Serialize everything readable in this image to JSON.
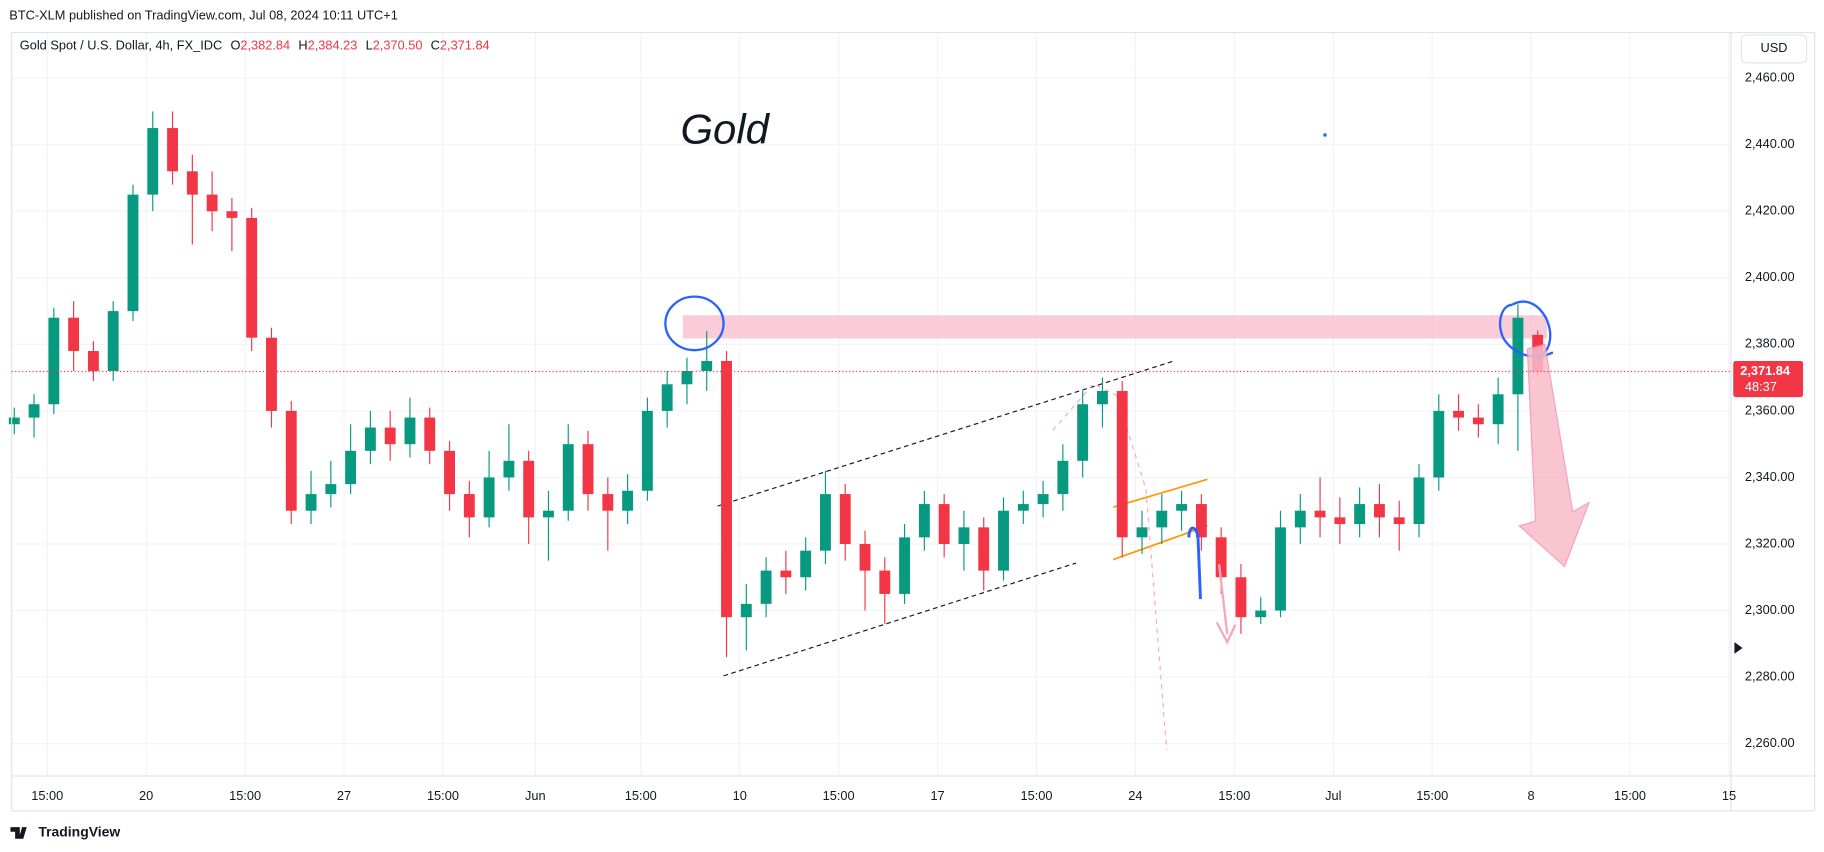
{
  "chart_data": {
    "type": "candlestick",
    "publisher": "BTC-XLM published on TradingView.com, Jul 08, 2024 10:11 UTC+1",
    "title": "Gold Spot / U.S. Dollar, 4h, FX_IDC",
    "legend_fields": [
      {
        "label": "O",
        "value": "2,382.84"
      },
      {
        "label": "H",
        "value": "2,384.23"
      },
      {
        "label": "L",
        "value": "2,370.50"
      },
      {
        "label": "C",
        "value": "2,371.84"
      }
    ],
    "annotation": "Gold",
    "currency": "USD",
    "countdown": "48:37",
    "brand": "TradingView",
    "up_color": "#089981",
    "down_color": "#f23645",
    "grid": true,
    "x": [
      0,
      3,
      6,
      9,
      12,
      15,
      18,
      21,
      24,
      27,
      30,
      33,
      36,
      39,
      42,
      45,
      48,
      51,
      54,
      57,
      60,
      63,
      66,
      69,
      72,
      75,
      78,
      81,
      84,
      87,
      90,
      93,
      96,
      99,
      102,
      105,
      108,
      111,
      114,
      117,
      120,
      123,
      126,
      129,
      132,
      135,
      138,
      141,
      144,
      147,
      150,
      153,
      156,
      159,
      162,
      165,
      168,
      171,
      174,
      177,
      180,
      183,
      186,
      189,
      192,
      195,
      198,
      201,
      204,
      207,
      210,
      213,
      216,
      219,
      222,
      225,
      228,
      231
    ],
    "open": [
      2356,
      2358,
      2362,
      2388,
      2378,
      2372,
      2390,
      2425,
      2445,
      2432,
      2425,
      2420,
      2418,
      2382,
      2360,
      2330,
      2335,
      2338,
      2348,
      2355,
      2350,
      2358,
      2348,
      2335,
      2328,
      2340,
      2345,
      2328,
      2330,
      2350,
      2335,
      2330,
      2336,
      2360,
      2368,
      2372,
      2375,
      2298,
      2302,
      2312,
      2310,
      2318,
      2335,
      2320,
      2312,
      2305,
      2322,
      2332,
      2320,
      2325,
      2312,
      2330,
      2332,
      2335,
      2345,
      2362,
      2366,
      2322,
      2325,
      2330,
      2332,
      2322,
      2310,
      2298,
      2300,
      2325,
      2330,
      2328,
      2326,
      2332,
      2328,
      2326,
      2340,
      2360,
      2358,
      2356,
      2365,
      2382.84
    ],
    "high": [
      2361,
      2365,
      2391,
      2393,
      2381,
      2393,
      2428,
      2450,
      2450,
      2437,
      2432,
      2424,
      2421,
      2385,
      2363,
      2342,
      2345,
      2356,
      2360,
      2360,
      2364,
      2361,
      2351,
      2339,
      2348,
      2356,
      2348,
      2336,
      2356,
      2354,
      2340,
      2341,
      2364,
      2372,
      2376,
      2384,
      2378,
      2308,
      2316,
      2318,
      2322,
      2342,
      2338,
      2324,
      2316,
      2326,
      2336,
      2335,
      2330,
      2328,
      2334,
      2336,
      2339,
      2350,
      2366,
      2370,
      2369,
      2330,
      2335,
      2336,
      2335,
      2325,
      2314,
      2304,
      2330,
      2335,
      2340,
      2334,
      2337,
      2338,
      2333,
      2344,
      2365,
      2365,
      2362,
      2370,
      2392,
      2384.23
    ],
    "low": [
      2353,
      2352,
      2359,
      2372,
      2369,
      2369,
      2387,
      2420,
      2428,
      2410,
      2414,
      2408,
      2378,
      2355,
      2326,
      2326,
      2331,
      2335,
      2344,
      2345,
      2346,
      2344,
      2330,
      2322,
      2325,
      2336,
      2320,
      2315,
      2327,
      2330,
      2318,
      2326,
      2333,
      2355,
      2362,
      2366,
      2286,
      2288,
      2298,
      2305,
      2306,
      2314,
      2315,
      2300,
      2296,
      2302,
      2318,
      2316,
      2312,
      2306,
      2309,
      2326,
      2328,
      2330,
      2340,
      2355,
      2316,
      2317,
      2320,
      2324,
      2318,
      2305,
      2293,
      2296,
      2298,
      2320,
      2322,
      2320,
      2322,
      2322,
      2318,
      2322,
      2336,
      2354,
      2352,
      2350,
      2348,
      2370.5
    ],
    "close": [
      2358,
      2362,
      2388,
      2378,
      2372,
      2390,
      2425,
      2445,
      2432,
      2425,
      2420,
      2418,
      2382,
      2360,
      2330,
      2335,
      2338,
      2348,
      2355,
      2350,
      2358,
      2348,
      2335,
      2328,
      2340,
      2345,
      2328,
      2330,
      2350,
      2335,
      2330,
      2336,
      2360,
      2368,
      2372,
      2375,
      2298,
      2302,
      2312,
      2310,
      2318,
      2335,
      2320,
      2312,
      2305,
      2322,
      2332,
      2320,
      2325,
      2312,
      2330,
      2332,
      2335,
      2345,
      2362,
      2366,
      2322,
      2325,
      2330,
      2332,
      2322,
      2310,
      2298,
      2300,
      2325,
      2330,
      2328,
      2326,
      2332,
      2328,
      2326,
      2340,
      2360,
      2358,
      2356,
      2365,
      2388,
      2371.84
    ],
    "xlim": [
      -0.4,
      260.3
    ],
    "xticks": [
      {
        "value": 5,
        "label": "15:00"
      },
      {
        "value": 20,
        "label": "20"
      },
      {
        "value": 35,
        "label": "15:00"
      },
      {
        "value": 50,
        "label": "27"
      },
      {
        "value": 65,
        "label": "15:00"
      },
      {
        "value": 79,
        "label": "Jun"
      },
      {
        "value": 95,
        "label": "15:00"
      },
      {
        "value": 110,
        "label": "10"
      },
      {
        "value": 125,
        "label": "15:00"
      },
      {
        "value": 140,
        "label": "17"
      },
      {
        "value": 155,
        "label": "15:00"
      },
      {
        "value": 170,
        "label": "24"
      },
      {
        "value": 185,
        "label": "15:00"
      },
      {
        "value": 200,
        "label": "Jul"
      },
      {
        "value": 215,
        "label": "15:00"
      },
      {
        "value": 230,
        "label": "8"
      },
      {
        "value": 245,
        "label": "15:00"
      },
      {
        "value": 260,
        "label": "15"
      }
    ],
    "ylim": [
      2251,
      2473
    ],
    "yticks": [
      {
        "value": 2260,
        "label": "2,260.00"
      },
      {
        "value": 2280,
        "label": "2,280.00"
      },
      {
        "value": 2300,
        "label": "2,300.00"
      },
      {
        "value": 2320,
        "label": "2,320.00"
      },
      {
        "value": 2340,
        "label": "2,340.00"
      },
      {
        "value": 2360,
        "label": "2,360.00"
      },
      {
        "value": 2380,
        "label": "2,380.00"
      },
      {
        "value": 2400,
        "label": "2,400.00"
      },
      {
        "value": 2420,
        "label": "2,420.00"
      },
      {
        "value": 2440,
        "label": "2,440.00"
      },
      {
        "value": 2460,
        "label": "2,460.00"
      }
    ]
  }
}
